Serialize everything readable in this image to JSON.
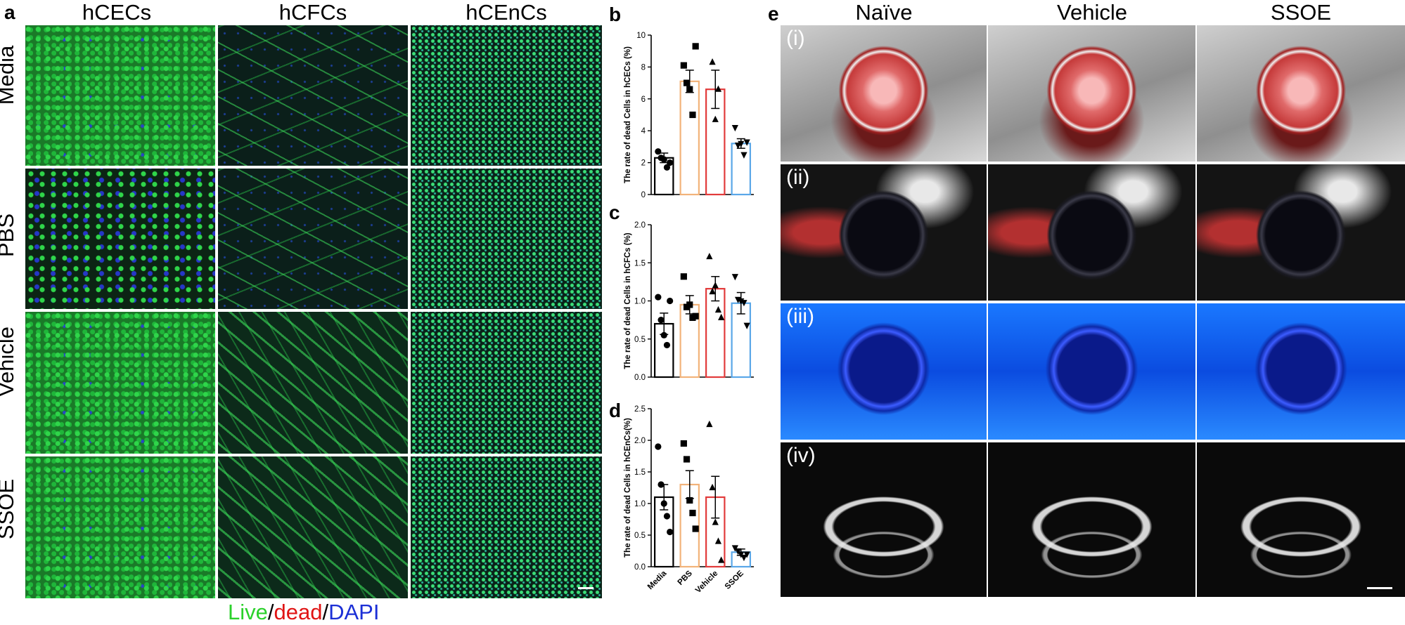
{
  "panel_a": {
    "letter": "a",
    "columns": [
      "hCECs",
      "hCFCs",
      "hCEnCs"
    ],
    "rows": [
      "Media",
      "PBS",
      "Vehicle",
      "SSOE"
    ],
    "legend": {
      "live": "Live",
      "sep1": "/",
      "dead": "dead",
      "sep2": "/",
      "dapi": "DAPI"
    },
    "colors": {
      "live": "#2bd12b",
      "dead": "#e01414",
      "dapi": "#1b2fd6"
    }
  },
  "panel_e": {
    "letter": "e",
    "columns": [
      "Naïve",
      "Vehicle",
      "SSOE"
    ],
    "rows": [
      "(i)",
      "(ii)",
      "(iii)",
      "(iv)"
    ]
  },
  "chart_data": [
    {
      "panel": "b",
      "type": "bar",
      "categories": [
        "Media",
        "PBS",
        "Vehicle",
        "SSOE"
      ],
      "values": [
        2.3,
        7.1,
        6.6,
        3.2
      ],
      "errors": [
        0.3,
        0.7,
        1.2,
        0.3
      ],
      "points": [
        [
          2.7,
          2.3,
          2.2,
          1.7,
          2.0
        ],
        [
          8.1,
          7.0,
          6.6,
          5.0,
          9.3
        ],
        [
          8.3,
          4.7,
          6.6
        ],
        [
          4.2,
          3.1,
          3.2,
          2.5,
          3.3
        ]
      ],
      "markers": [
        "circle",
        "square",
        "triangle-up",
        "triangle-down"
      ],
      "bar_colors": [
        "#000000",
        "#f2b37a",
        "#e23b3b",
        "#5aa7e8"
      ],
      "ylabel": "The rate of dead Cells in hCECs (%)",
      "ylim": [
        0,
        10
      ],
      "yticks": [
        0,
        2,
        4,
        6,
        8,
        10
      ],
      "show_xticks": false
    },
    {
      "panel": "c",
      "type": "bar",
      "categories": [
        "Media",
        "PBS",
        "Vehicle",
        "SSOE"
      ],
      "values": [
        0.7,
        0.95,
        1.16,
        0.97
      ],
      "errors": [
        0.14,
        0.12,
        0.16,
        0.14
      ],
      "points": [
        [
          1.05,
          0.75,
          0.55,
          0.42,
          1.0
        ],
        [
          1.32,
          0.92,
          0.95,
          0.78,
          0.8
        ],
        [
          1.58,
          1.12,
          1.2,
          0.88,
          0.78
        ],
        [
          1.32,
          1.02,
          1.0,
          0.98,
          0.68
        ]
      ],
      "markers": [
        "circle",
        "square",
        "triangle-up",
        "triangle-down"
      ],
      "bar_colors": [
        "#000000",
        "#f2b37a",
        "#e23b3b",
        "#5aa7e8"
      ],
      "ylabel": "The rate of dead Cells in hCFCs (%)",
      "ylim": [
        0,
        2.0
      ],
      "yticks": [
        0,
        0.5,
        1.0,
        1.5,
        2.0
      ],
      "ytick_labels": [
        "0.0",
        "0.5",
        "1.0",
        "1.5",
        "2.0"
      ],
      "show_xticks": false
    },
    {
      "panel": "d",
      "type": "bar",
      "categories": [
        "Media",
        "PBS",
        "Vehicle",
        "SSOE"
      ],
      "values": [
        1.1,
        1.3,
        1.1,
        0.23
      ],
      "errors": [
        0.2,
        0.22,
        0.33,
        0.05
      ],
      "points": [
        [
          1.9,
          1.3,
          1.0,
          0.8,
          0.55
        ],
        [
          1.95,
          1.7,
          1.05,
          0.85,
          0.6
        ],
        [
          2.25,
          1.25,
          0.7,
          0.4,
          0.1
        ],
        [
          0.3,
          0.25,
          0.2,
          0.15,
          0.2
        ]
      ],
      "markers": [
        "circle",
        "square",
        "triangle-up",
        "triangle-down"
      ],
      "bar_colors": [
        "#000000",
        "#f2b37a",
        "#e23b3b",
        "#5aa7e8"
      ],
      "ylabel": "The rate of dead Cells in hCEnCs(%)",
      "ylim": [
        0,
        2.5
      ],
      "yticks": [
        0,
        0.5,
        1.0,
        1.5,
        2.0,
        2.5
      ],
      "ytick_labels": [
        "0.0",
        "0.5",
        "1.0",
        "1.5",
        "2.0",
        "2.5"
      ],
      "show_xticks": true
    }
  ]
}
